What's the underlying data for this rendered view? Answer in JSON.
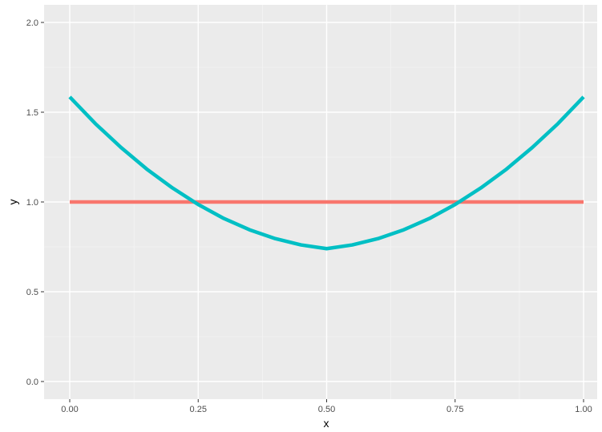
{
  "chart_data": {
    "type": "line",
    "xlabel": "x",
    "ylabel": "y",
    "xlim": [
      0,
      1
    ],
    "ylim": [
      0,
      2
    ],
    "x_ticks": [
      0.0,
      0.25,
      0.5,
      0.75,
      1.0
    ],
    "x_tick_labels": [
      "0.00",
      "0.25",
      "0.50",
      "0.75",
      "1.00"
    ],
    "y_ticks": [
      0.0,
      0.5,
      1.0,
      1.5,
      2.0
    ],
    "y_tick_labels": [
      "0.0",
      "0.5",
      "1.0",
      "1.5",
      "2.0"
    ],
    "grid": true,
    "legend": "none",
    "series": [
      {
        "color": "#F8766D",
        "x": [
          0.0,
          0.25,
          0.5,
          0.75,
          1.0
        ],
        "y": [
          1.0,
          1.0,
          1.0,
          1.0,
          1.0
        ]
      },
      {
        "color": "#00BFC4",
        "x": [
          0.0,
          0.05,
          0.1,
          0.15,
          0.2,
          0.25,
          0.3,
          0.35,
          0.4,
          0.45,
          0.5,
          0.55,
          0.6,
          0.65,
          0.7,
          0.75,
          0.8,
          0.85,
          0.9,
          0.95,
          1.0
        ],
        "y": [
          1.585,
          1.436,
          1.303,
          1.183,
          1.078,
          0.986,
          0.908,
          0.845,
          0.796,
          0.761,
          0.74,
          0.761,
          0.796,
          0.845,
          0.908,
          0.986,
          1.078,
          1.183,
          1.303,
          1.436,
          1.585
        ]
      }
    ]
  }
}
